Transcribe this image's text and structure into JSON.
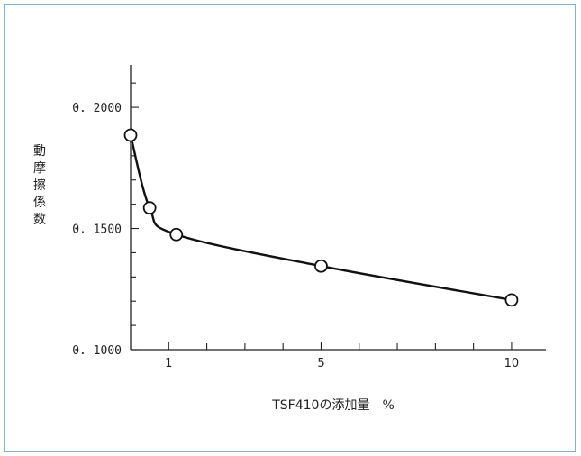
{
  "chart_data": {
    "type": "line",
    "title": "",
    "xlabel": "TSF410の添加量　%",
    "ylabel": "動摩擦係数",
    "x_axis": {
      "scale": "linear",
      "range": [
        0,
        10.9
      ],
      "tick_labels": [
        "1",
        "5",
        "10"
      ]
    },
    "y_axis": {
      "scale": "linear",
      "range": [
        0.1,
        0.2175
      ],
      "tick_labels": [
        "0. 2000",
        "0. 1500",
        "0. 1000"
      ]
    },
    "grid": false,
    "legend": "none",
    "series": [
      {
        "name": "",
        "x": [
          0,
          0.5,
          1.2,
          5,
          10
        ],
        "y": [
          0.1885,
          0.1585,
          0.1475,
          0.1345,
          0.1205
        ],
        "curve": "smooth",
        "marker": "open-circle"
      }
    ]
  }
}
